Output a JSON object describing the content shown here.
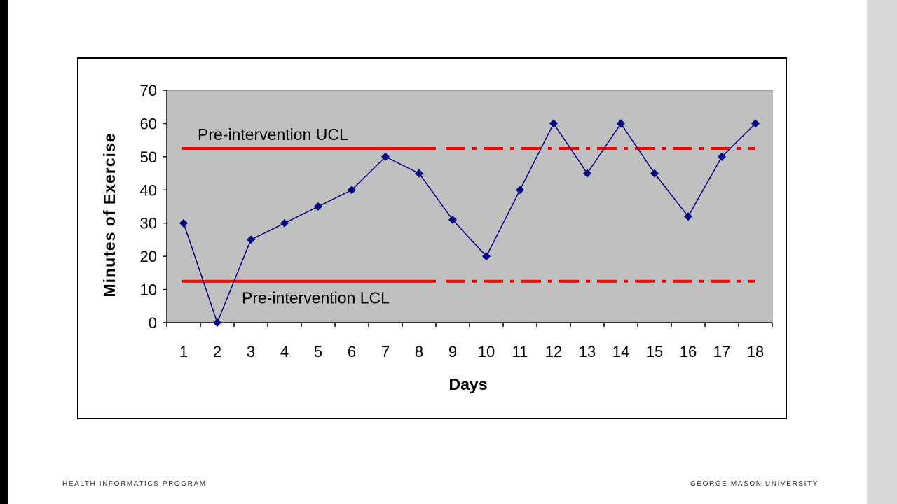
{
  "footer": {
    "left": "HEALTH INFORMATICS PROGRAM",
    "right": "GEORGE MASON UNIVERSITY"
  },
  "colors": {
    "plot_background": "#c0c0c0",
    "series": "#000080",
    "control_limit": "#ff0000"
  },
  "chart_data": {
    "type": "line",
    "title": "",
    "xlabel": "Days",
    "ylabel": "Minutes of Exercise",
    "ylim": [
      0,
      70
    ],
    "yticks": [
      0,
      10,
      20,
      30,
      40,
      50,
      60,
      70
    ],
    "grid": false,
    "categories": [
      "1",
      "2",
      "3",
      "4",
      "5",
      "6",
      "7",
      "8",
      "9",
      "10",
      "11",
      "12",
      "13",
      "14",
      "15",
      "16",
      "17",
      "18"
    ],
    "series": [
      {
        "values": [
          30,
          0,
          25,
          30,
          35,
          40,
          50,
          45,
          31,
          20,
          40,
          60,
          45,
          60,
          45,
          32,
          50,
          60
        ]
      }
    ],
    "reference_lines": [
      {
        "name": "Pre-intervention UCL",
        "value": 52.5,
        "solid_through_day": 8,
        "dashed_after": true
      },
      {
        "name": "Pre-intervention LCL",
        "value": 12.5,
        "solid_through_day": 8,
        "dashed_after": true
      }
    ]
  }
}
